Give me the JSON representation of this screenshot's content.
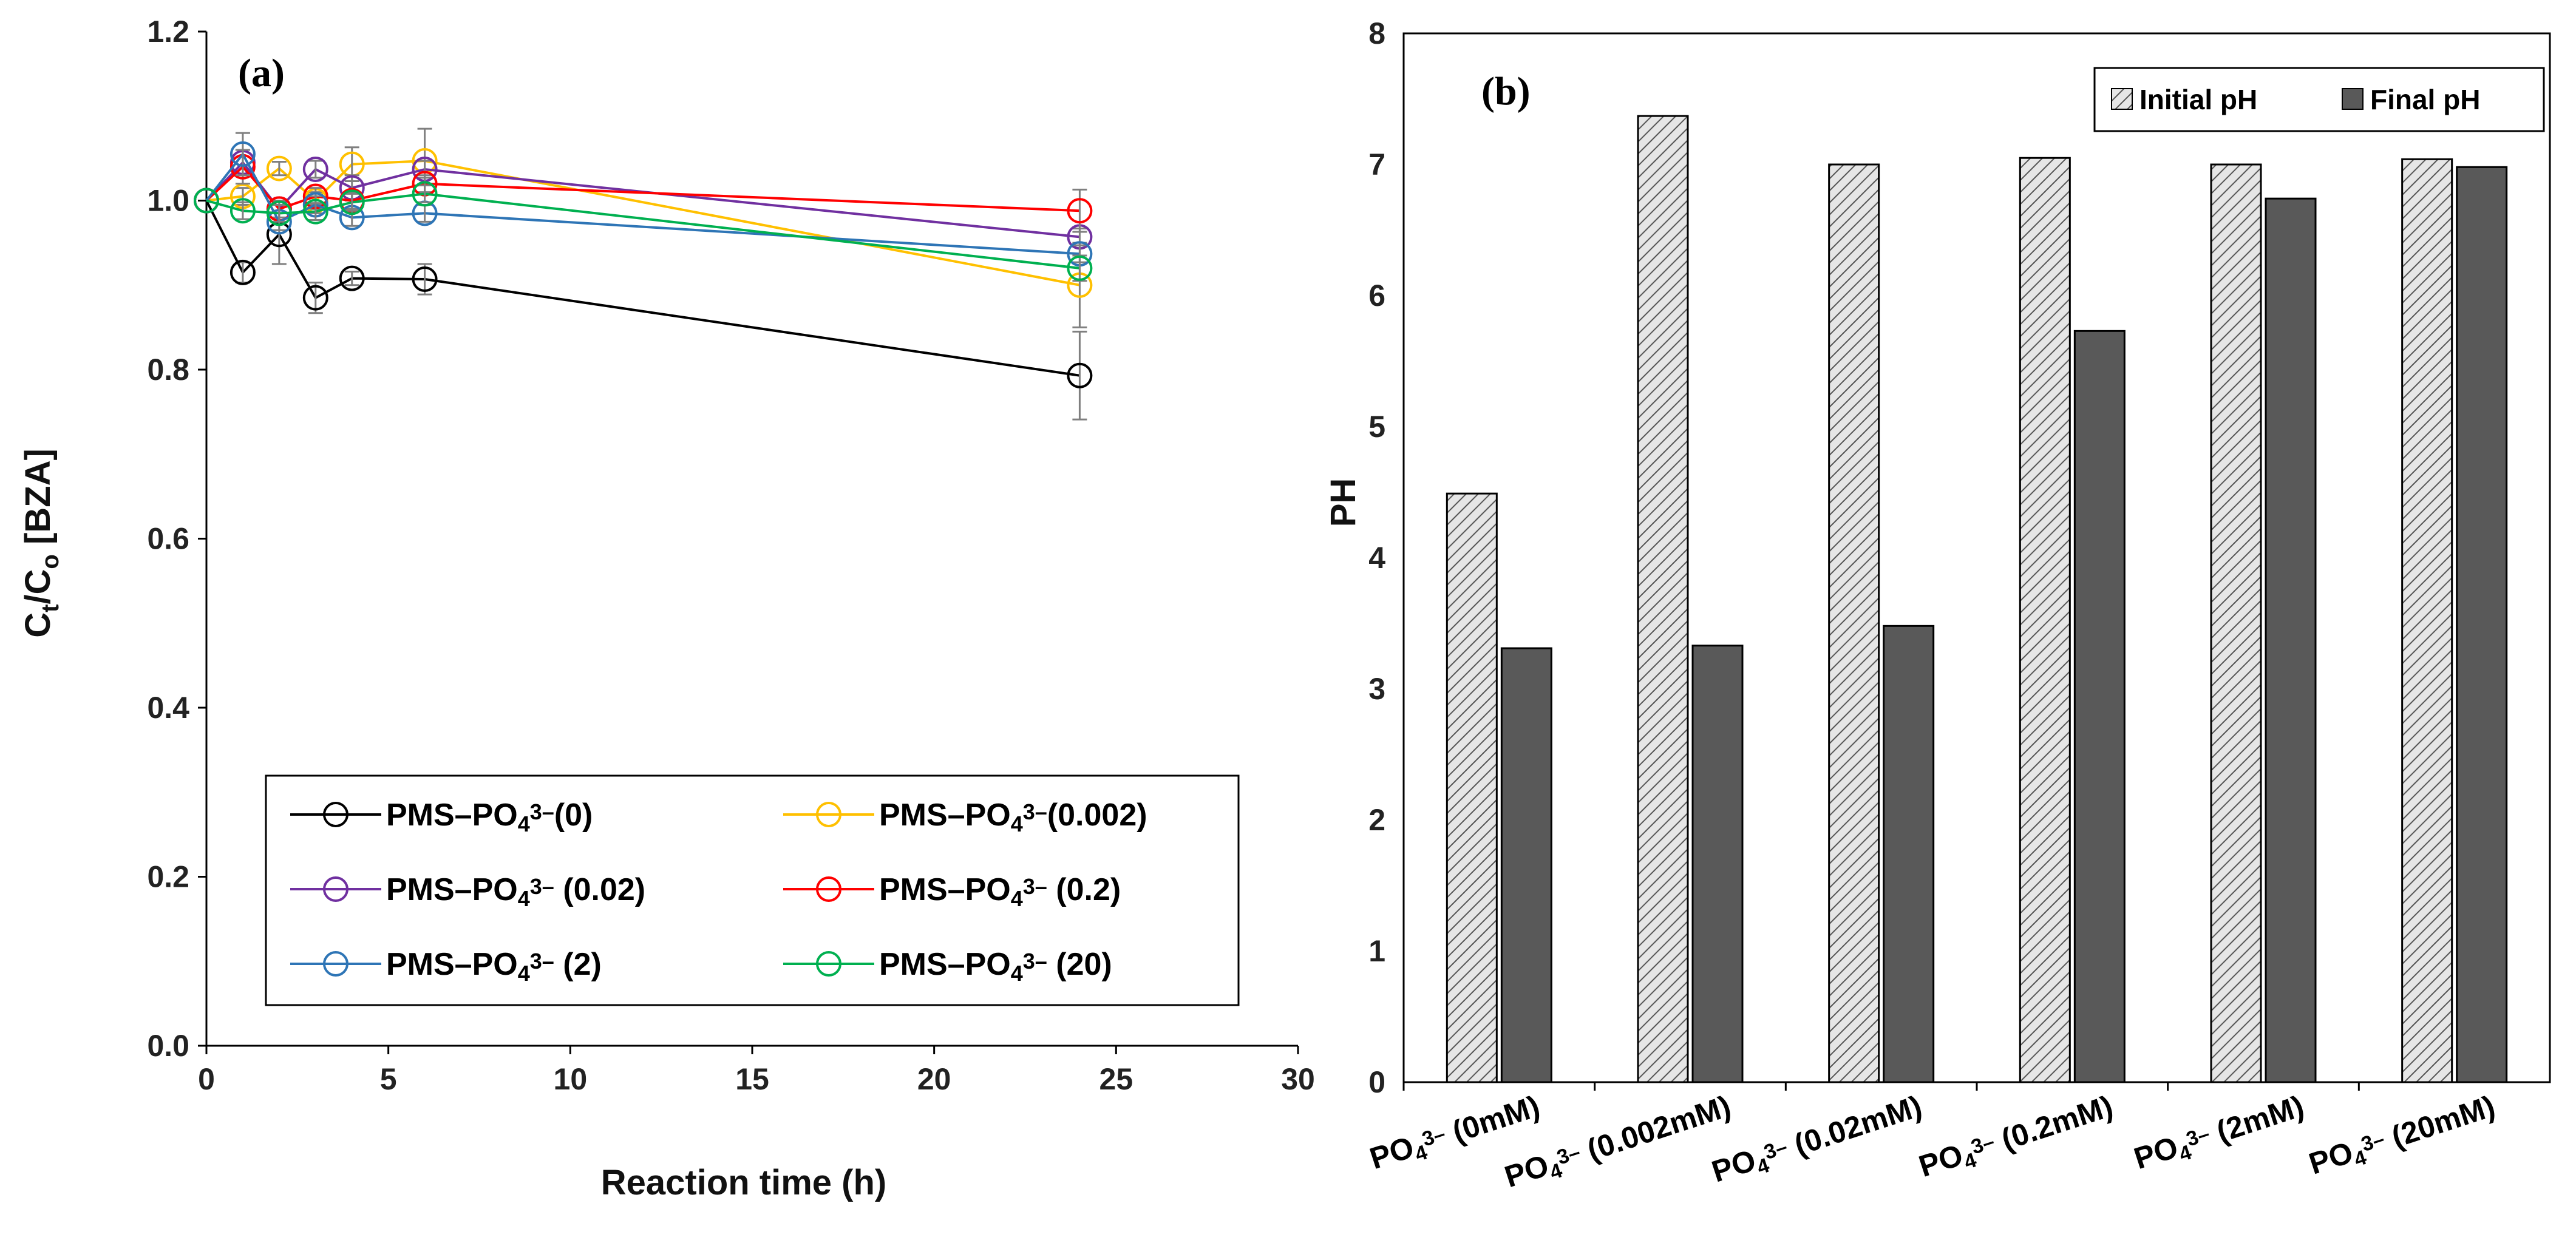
{
  "chart_data": [
    {
      "type": "line",
      "panel_label": "(a)",
      "xlabel": "Reaction time (h)",
      "ylabel": {
        "main": "C",
        "sub1": "t",
        "mid": "/C",
        "sub2": "o",
        "tail": " [BZA]"
      },
      "xlim": [
        0,
        30
      ],
      "ylim": [
        0.0,
        1.2
      ],
      "xticks": [
        0,
        5,
        10,
        15,
        20,
        25,
        30
      ],
      "yticks": [
        "0.0",
        "0.2",
        "0.4",
        "0.6",
        "0.8",
        "1.0",
        "1.2"
      ],
      "x": [
        0,
        1,
        2,
        3,
        4,
        6,
        24
      ],
      "legend_position": "bottom-center",
      "series": [
        {
          "name": "PMS–PO43–(0)",
          "label_pre": "PMS–PO",
          "label_sub": "4",
          "label_sup": "3–",
          "label_post": "(0)",
          "color": "#000000",
          "values": [
            1.0,
            0.915,
            0.96,
            0.885,
            0.908,
            0.907,
            0.793
          ],
          "errors": [
            0,
            0.012,
            0.035,
            0.018,
            0.008,
            0.018,
            0.052
          ]
        },
        {
          "name": "PMS–PO43–(0.002)",
          "label_pre": "PMS–PO",
          "label_sub": "4",
          "label_sup": "3–",
          "label_post": "(0.002)",
          "color": "#FFC000",
          "values": [
            1.0,
            1.005,
            1.038,
            1.0,
            1.043,
            1.047,
            0.9
          ],
          "errors": [
            0,
            0.01,
            0.008,
            0.01,
            0.02,
            0.038,
            0.05
          ]
        },
        {
          "name": "PMS–PO43– (0.02)",
          "label_pre": "PMS–PO",
          "label_sub": "4",
          "label_sup": "3–",
          "label_post": " (0.02)",
          "color": "#7030A0",
          "values": [
            1.0,
            1.045,
            0.99,
            1.037,
            1.015,
            1.037,
            0.957
          ],
          "errors": [
            0,
            0.015,
            0.01,
            0.01,
            0.015,
            0.01,
            0.01
          ]
        },
        {
          "name": "PMS–PO43– (0.2)",
          "label_pre": "PMS–PO",
          "label_sub": "4",
          "label_sup": "3–",
          "label_post": " (0.2)",
          "color": "#FF0000",
          "values": [
            1.0,
            1.04,
            0.99,
            1.005,
            1.0,
            1.02,
            0.988
          ],
          "errors": [
            0,
            0.02,
            0.01,
            0.01,
            0.01,
            0.01,
            0.025
          ]
        },
        {
          "name": "PMS–PO43– (2)",
          "label_pre": "PMS–PO",
          "label_sub": "4",
          "label_sup": "3–",
          "label_post": " (2)",
          "color": "#2E75B6",
          "values": [
            1.0,
            1.055,
            0.975,
            0.995,
            0.98,
            0.985,
            0.937
          ],
          "errors": [
            0,
            0.025,
            0.01,
            0.01,
            0.01,
            0.01,
            0.01
          ]
        },
        {
          "name": "PMS–PO43– (20)",
          "label_pre": "PMS–PO",
          "label_sub": "4",
          "label_sup": "3–",
          "label_post": " (20)",
          "color": "#00B050",
          "values": [
            1.0,
            0.988,
            0.985,
            0.987,
            0.998,
            1.008,
            0.92
          ],
          "errors": [
            0,
            0.01,
            0.01,
            0.01,
            0.01,
            0.01,
            0.015
          ]
        }
      ]
    },
    {
      "type": "bar",
      "panel_label": "(b)",
      "ylabel": "PH",
      "ylim": [
        0,
        8
      ],
      "yticks": [
        "0",
        "1",
        "2",
        "3",
        "4",
        "5",
        "6",
        "7",
        "8"
      ],
      "legend_position": "top-right",
      "categories": [
        {
          "pre": "PO",
          "sub": "4",
          "sup": "3–",
          "post": " (0mM)"
        },
        {
          "pre": "PO",
          "sub": "4",
          "sup": "3–",
          "post": " (0.002mM)"
        },
        {
          "pre": "PO",
          "sub": "4",
          "sup": "3–",
          "post": " (0.02mM)"
        },
        {
          "pre": "PO",
          "sub": "4",
          "sup": "3–",
          "post": " (0.2mM)"
        },
        {
          "pre": "PO",
          "sub": "4",
          "sup": "3–",
          "post": " (2mM)"
        },
        {
          "pre": "PO",
          "sub": "4",
          "sup": "3–",
          "post": " (20mM)"
        }
      ],
      "series": [
        {
          "name": "Initial pH",
          "pattern": "hatched",
          "color": "#E0E0E0",
          "values": [
            4.49,
            7.37,
            7.0,
            7.05,
            7.0,
            7.04
          ]
        },
        {
          "name": "Final pH",
          "pattern": "solid",
          "color": "#595959",
          "values": [
            3.31,
            3.33,
            3.48,
            5.73,
            6.74,
            6.98
          ]
        }
      ]
    }
  ]
}
